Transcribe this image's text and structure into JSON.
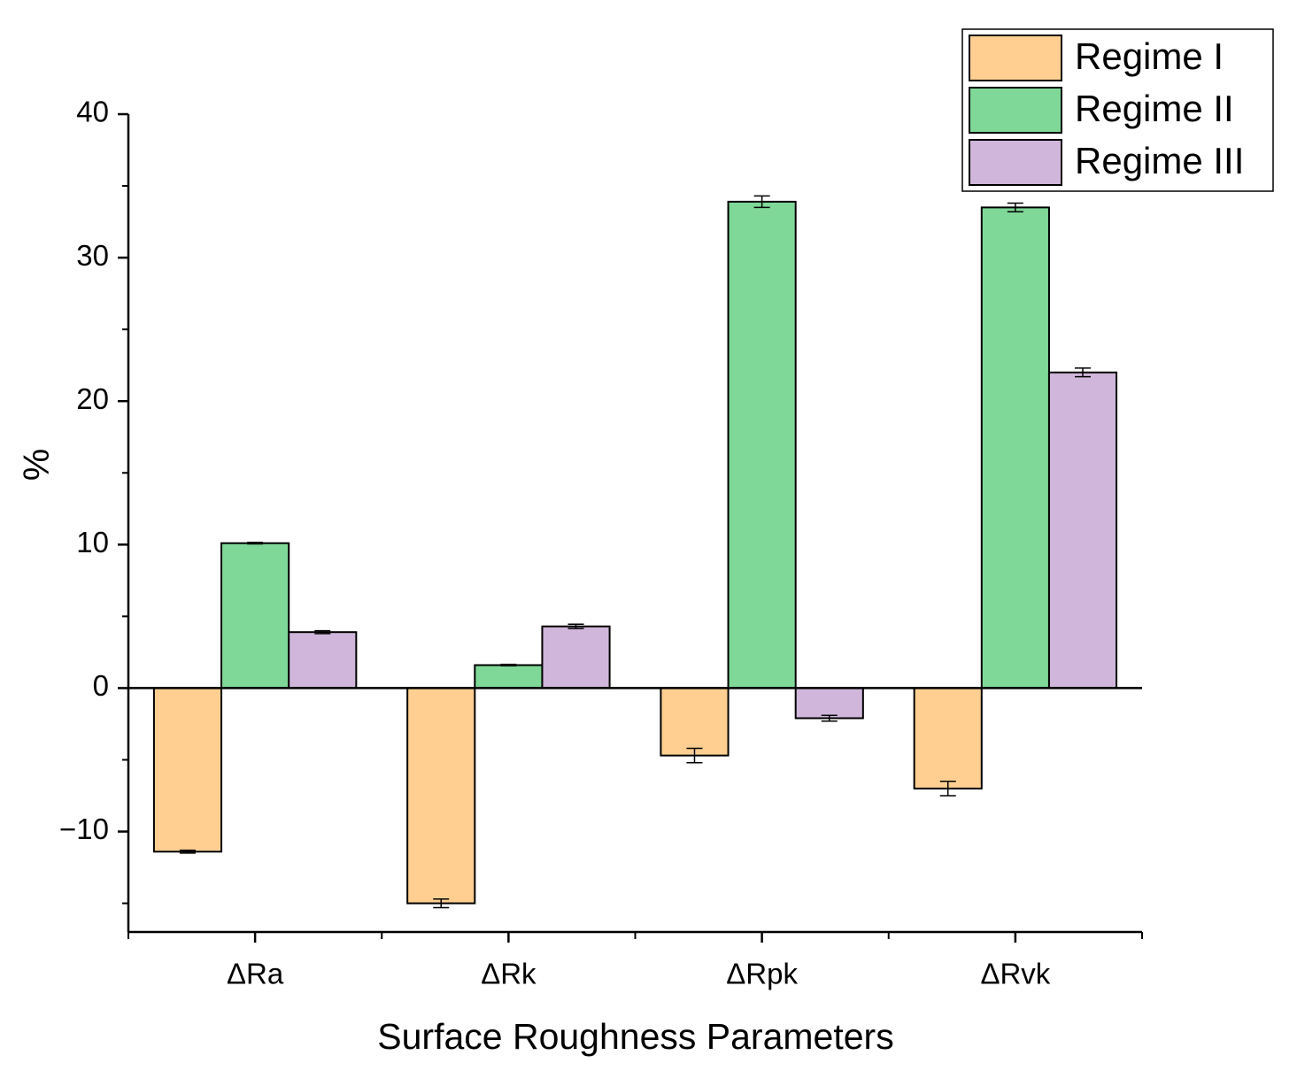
{
  "chart_data": {
    "type": "bar",
    "x_label": "Surface Roughness Parameters",
    "y_label": "%",
    "categories": [
      "ΔRa",
      "ΔRk",
      "ΔRpk",
      "ΔRvk"
    ],
    "series": [
      {
        "name": "Regime I",
        "color": "#ffcf91",
        "values": [
          -11.4,
          -15.0,
          -4.7,
          -7.0
        ],
        "errors": [
          0.1,
          0.3,
          0.5,
          0.5
        ]
      },
      {
        "name": "Regime II",
        "color": "#7fd898",
        "values": [
          10.1,
          1.6,
          33.9,
          33.5
        ],
        "errors": [
          0.05,
          0.05,
          0.4,
          0.3
        ]
      },
      {
        "name": "Regime III",
        "color": "#d0b6da",
        "values": [
          3.9,
          4.3,
          -2.1,
          22.0
        ],
        "errors": [
          0.1,
          0.15,
          0.2,
          0.3
        ]
      }
    ],
    "ylim": [
      -17,
      40
    ],
    "yticks": [
      {
        "value": -10,
        "label": "−10"
      },
      0,
      10,
      20,
      30,
      40
    ],
    "legend": "upper right"
  }
}
